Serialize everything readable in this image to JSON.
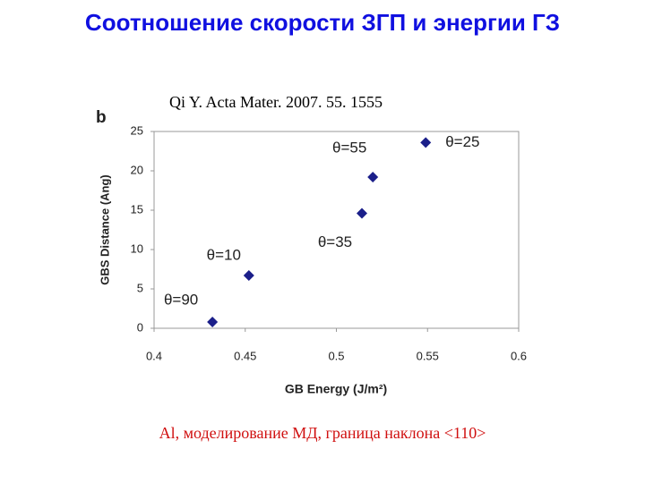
{
  "title": "Соотношение скорости ЗГП и энергии ГЗ",
  "citation": "Qi Y. Acta Mater. 2007. 55. 1555",
  "caption": "Al, моделирование МД, граница наклона <110>",
  "chart_data": {
    "type": "scatter",
    "panel_label": "b",
    "x_label": "GB Energy (J/m²)",
    "y_label": "GBS Distance (Ang)",
    "x": [
      0.432,
      0.452,
      0.514,
      0.52,
      0.549
    ],
    "values": [
      0.8,
      6.7,
      14.6,
      19.2,
      23.6
    ],
    "point_labels": [
      "θ=90",
      "θ=10",
      "θ=35",
      "θ=55",
      "θ=25"
    ],
    "color": "#1b1f8a",
    "xlim": [
      0.4,
      0.6
    ],
    "xticks": [
      0.4,
      0.45,
      0.5,
      0.55,
      0.6
    ],
    "ylim": [
      0,
      25
    ],
    "yticks": [
      0,
      5,
      10,
      15,
      20,
      25
    ],
    "grid": false
  }
}
